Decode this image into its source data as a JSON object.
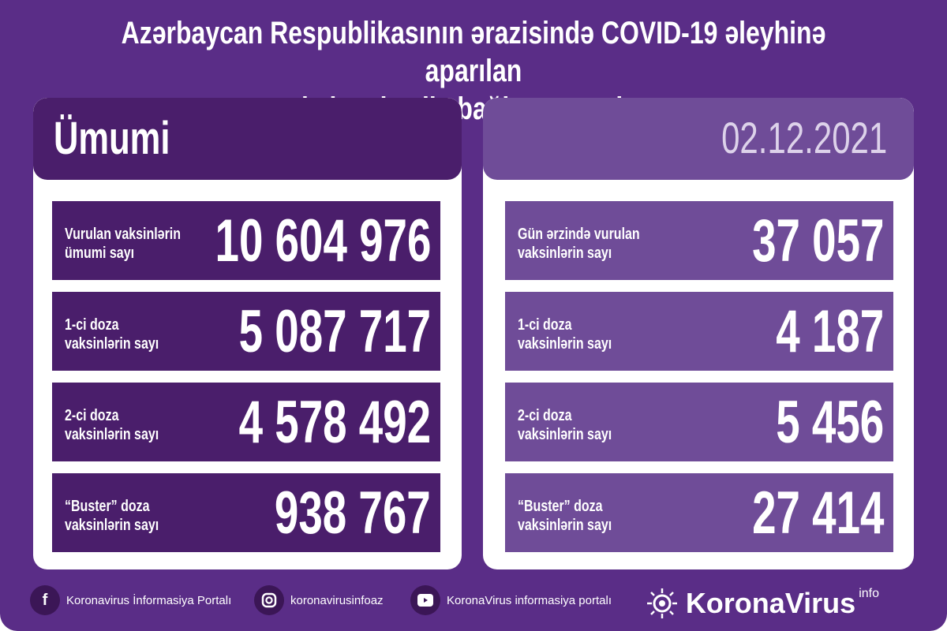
{
  "title": {
    "line1": "Azərbaycan Respublikasının ərazisində COVID-19 əleyhinə aparılan",
    "line2": "vaksinasiya ilə bağlı son vəziyyət"
  },
  "left": {
    "header": "Ümumi",
    "rows": [
      {
        "label1": "Vurulan vaksinlərin",
        "label2": "ümumi sayı",
        "value": "10 604 976"
      },
      {
        "label1": "1-ci doza",
        "label2": "vaksinlərin sayı",
        "value": "5 087 717"
      },
      {
        "label1": "2-ci doza",
        "label2": "vaksinlərin sayı",
        "value": "4 578 492"
      },
      {
        "label1": "“Buster” doza",
        "label2": "vaksinlərin sayı",
        "value": "938 767"
      }
    ]
  },
  "right": {
    "header": "02.12.2021",
    "rows": [
      {
        "label1": "Gün ərzində vurulan",
        "label2": "vaksinlərin sayı",
        "value": "37 057"
      },
      {
        "label1": "1-ci doza",
        "label2": "vaksinlərin sayı",
        "value": "4 187"
      },
      {
        "label1": "2-ci doza",
        "label2": "vaksinlərin sayı",
        "value": "5 456"
      },
      {
        "label1": "“Buster” doza",
        "label2": "vaksinlərin sayı",
        "value": "27 414"
      }
    ]
  },
  "footer": {
    "facebook": "Koronavirus İnformasiya Portalı",
    "instagram": "koronavirusinfoaz",
    "youtube": "KoronaVirus informasiya portalı",
    "brand": "KoronaVirus",
    "brand_sup": "info",
    "icons": [
      "facebook-icon",
      "instagram-icon",
      "youtube-icon",
      "virus-logo-icon"
    ]
  },
  "colors": {
    "background": "#5a2d87",
    "dark_panel": "#4a1e6b",
    "light_panel": "#6f4c98"
  }
}
